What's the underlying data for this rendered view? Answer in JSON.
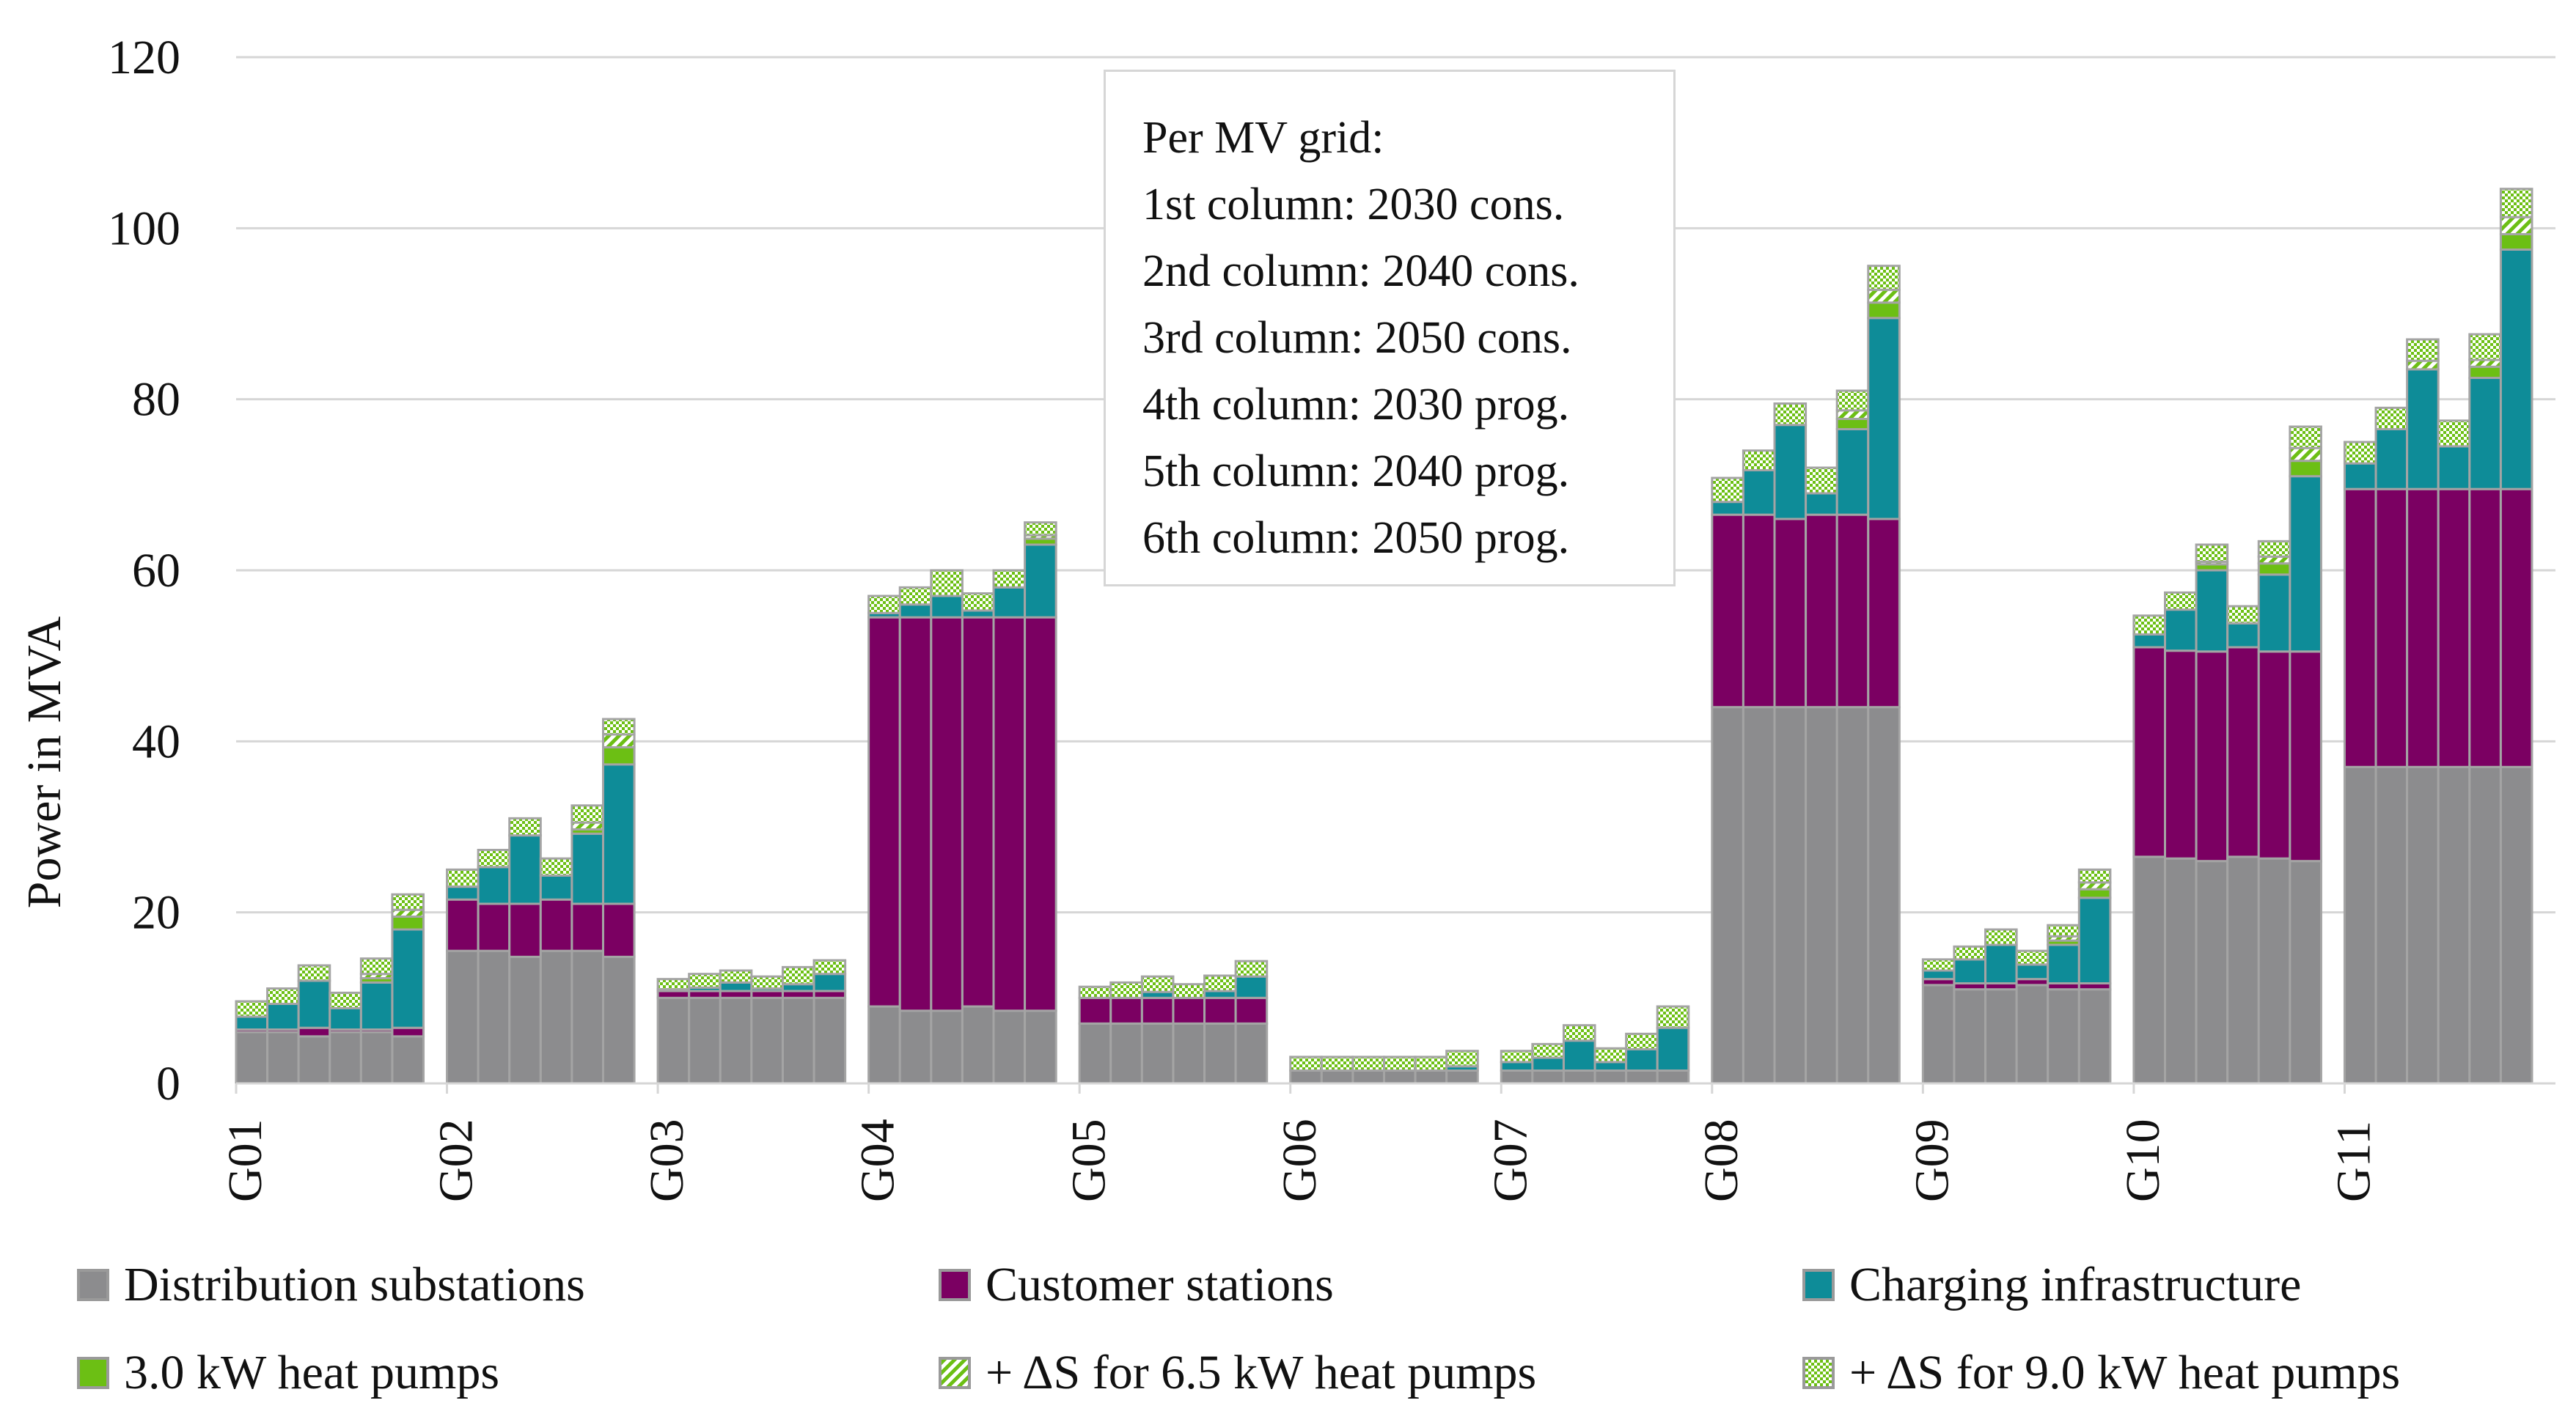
{
  "chart_data": {
    "type": "bar",
    "stacked": true,
    "ylabel": "Power in MVA",
    "ylim": [
      0,
      120
    ],
    "yticks": [
      0,
      20,
      40,
      60,
      80,
      100,
      120
    ],
    "grid": true,
    "groups": [
      "G01",
      "G02",
      "G03",
      "G04",
      "G05",
      "G06",
      "G07",
      "G08",
      "G09",
      "G10",
      "G11"
    ],
    "columns_per_group": 6,
    "legend_position": "bottom",
    "series": [
      {
        "name": "Distribution substations",
        "key": "dist",
        "color": "#8c8c8e"
      },
      {
        "name": "Customer stations",
        "key": "cust",
        "color": "#7b0062"
      },
      {
        "name": "Charging infrastructure",
        "key": "charge",
        "color": "#0e8c98"
      },
      {
        "name": "3.0 kW heat pumps",
        "key": "hp3",
        "color": "#6cbf14"
      },
      {
        "name": "+ ΔS for 6.5 kW heat pumps",
        "key": "hp65",
        "color": "#6cbf14",
        "pattern": "diagonal"
      },
      {
        "name": "+ ΔS for 9.0 kW heat pumps",
        "key": "hp9",
        "color": "#6cbf14",
        "pattern": "checker"
      }
    ],
    "data": {
      "G01": {
        "dist": [
          6,
          6,
          5.5,
          6,
          6,
          5.5
        ],
        "cust": [
          0.3,
          0.3,
          1,
          0.3,
          0.3,
          1
        ],
        "charge": [
          1.5,
          3,
          5.5,
          2.5,
          5.5,
          11.5
        ],
        "hp3": [
          0,
          0,
          0,
          0,
          0.5,
          1.5
        ],
        "hp65": [
          0,
          0,
          0,
          0,
          0.5,
          0.8
        ],
        "hp9": [
          1.8,
          1.8,
          1.8,
          1.8,
          1.8,
          1.8
        ]
      },
      "G02": {
        "dist": [
          15.5,
          15.5,
          14.8,
          15.5,
          15.5,
          14.8
        ],
        "cust": [
          6,
          5.5,
          6.2,
          6,
          5.5,
          6.2
        ],
        "charge": [
          1.5,
          4.3,
          8,
          2.8,
          8.2,
          16.3
        ],
        "hp3": [
          0,
          0,
          0,
          0,
          0.5,
          2
        ],
        "hp65": [
          0,
          0,
          0,
          0,
          0.8,
          1.5
        ],
        "hp9": [
          2,
          2,
          2,
          2,
          2,
          1.8
        ]
      },
      "G03": {
        "dist": [
          10,
          10,
          10,
          10,
          10,
          10
        ],
        "cust": [
          0.8,
          0.8,
          0.8,
          0.8,
          0.8,
          0.8
        ],
        "charge": [
          0.2,
          0.4,
          1,
          0.3,
          0.8,
          2
        ],
        "hp3": [
          0,
          0,
          0,
          0,
          0,
          0
        ],
        "hp65": [
          0,
          0,
          0,
          0,
          0,
          0
        ],
        "hp9": [
          1.2,
          1.6,
          1.4,
          1.4,
          2,
          1.6
        ]
      },
      "G04": {
        "dist": [
          9,
          8.5,
          8.5,
          9,
          8.5,
          8.5
        ],
        "cust": [
          45.5,
          46,
          46,
          45.5,
          46,
          46
        ],
        "charge": [
          0.5,
          1.5,
          2.5,
          0.8,
          3.5,
          8.5
        ],
        "hp3": [
          0,
          0,
          0,
          0,
          0,
          0.7
        ],
        "hp65": [
          0,
          0,
          0,
          0,
          0,
          0.4
        ],
        "hp9": [
          2,
          2,
          3,
          2,
          2,
          1.5
        ]
      },
      "G05": {
        "dist": [
          7,
          7,
          7,
          7,
          7,
          7
        ],
        "cust": [
          3,
          3,
          3,
          3,
          3,
          3
        ],
        "charge": [
          0,
          0,
          0.7,
          0,
          0.8,
          2.5
        ],
        "hp3": [
          0,
          0,
          0,
          0,
          0,
          0
        ],
        "hp65": [
          0,
          0,
          0,
          0,
          0,
          0
        ],
        "hp9": [
          1.3,
          1.8,
          1.8,
          1.6,
          1.8,
          1.8
        ]
      },
      "G06": {
        "dist": [
          1.5,
          1.5,
          1.5,
          1.5,
          1.5,
          1.5
        ],
        "cust": [
          0,
          0,
          0,
          0,
          0,
          0
        ],
        "charge": [
          0,
          0,
          0,
          0,
          0,
          0.5
        ],
        "hp3": [
          0,
          0,
          0,
          0,
          0,
          0
        ],
        "hp65": [
          0,
          0,
          0,
          0,
          0,
          0
        ],
        "hp9": [
          1.6,
          1.6,
          1.6,
          1.6,
          1.6,
          1.8
        ]
      },
      "G07": {
        "dist": [
          1.5,
          1.5,
          1.5,
          1.5,
          1.5,
          1.5
        ],
        "cust": [
          0,
          0,
          0,
          0,
          0,
          0
        ],
        "charge": [
          1,
          1.5,
          3.5,
          1,
          2.5,
          5
        ],
        "hp3": [
          0,
          0,
          0,
          0,
          0,
          0
        ],
        "hp65": [
          0,
          0,
          0,
          0,
          0,
          0
        ],
        "hp9": [
          1.3,
          1.6,
          1.8,
          1.6,
          1.8,
          2.5
        ]
      },
      "G08": {
        "dist": [
          44,
          44,
          44,
          44,
          44,
          44
        ],
        "cust": [
          22.5,
          22.5,
          22,
          22.5,
          22.5,
          22
        ],
        "charge": [
          1.5,
          5.2,
          11,
          2.5,
          10,
          23.5
        ],
        "hp3": [
          0,
          0,
          0,
          0,
          1.2,
          1.8
        ],
        "hp65": [
          0,
          0,
          0,
          0,
          1,
          1.5
        ],
        "hp9": [
          2.8,
          2.3,
          2.5,
          3,
          2.3,
          2.8
        ]
      },
      "G09": {
        "dist": [
          11.5,
          11,
          11,
          11.5,
          11,
          11
        ],
        "cust": [
          0.7,
          0.7,
          0.7,
          0.7,
          0.7,
          0.7
        ],
        "charge": [
          1,
          2.8,
          4.5,
          1.7,
          4.5,
          10
        ],
        "hp3": [
          0,
          0,
          0,
          0,
          0.5,
          1
        ],
        "hp65": [
          0,
          0,
          0,
          0,
          0.5,
          0.8
        ],
        "hp9": [
          1.3,
          1.5,
          1.8,
          1.6,
          1.3,
          1.5
        ]
      },
      "G10": {
        "dist": [
          26.5,
          26.3,
          26,
          26.5,
          26.3,
          26
        ],
        "cust": [
          24.5,
          24.3,
          24.5,
          24.5,
          24.2,
          24.5
        ],
        "charge": [
          1.5,
          4.8,
          9.5,
          2.8,
          9,
          20.5
        ],
        "hp3": [
          0,
          0,
          0.7,
          0,
          1.3,
          1.8
        ],
        "hp65": [
          0,
          0,
          0.3,
          0,
          0.8,
          1.5
        ],
        "hp9": [
          2.2,
          2,
          2,
          2,
          1.8,
          2.5
        ]
      },
      "G11": {
        "dist": [
          37,
          37,
          37,
          37,
          37,
          37
        ],
        "cust": [
          32.5,
          32.5,
          32.5,
          32.5,
          32.5,
          32.5
        ],
        "charge": [
          3,
          7,
          14,
          5,
          13,
          28
        ],
        "hp3": [
          0,
          0,
          0,
          0,
          1.3,
          1.8
        ],
        "hp65": [
          0,
          0,
          1,
          0,
          0.8,
          2
        ],
        "hp9": [
          2.5,
          2.5,
          2.5,
          3,
          3,
          3.3
        ]
      }
    }
  },
  "infobox": {
    "lines": [
      "Per MV grid:",
      "1st column: 2030 cons.",
      "2nd column: 2040 cons.",
      "3rd column: 2050 cons.",
      "4th column: 2030 prog.",
      "5th column: 2040 prog.",
      "6th column: 2050 prog."
    ]
  },
  "legend": {
    "items": [
      {
        "label": "Distribution substations"
      },
      {
        "label": "Customer stations"
      },
      {
        "label": "Charging infrastructure"
      },
      {
        "label": "3.0 kW heat pumps"
      },
      {
        "label": "+ ΔS for 6.5 kW heat pumps"
      },
      {
        "label": "+ ΔS for 9.0 kW heat pumps"
      }
    ]
  }
}
